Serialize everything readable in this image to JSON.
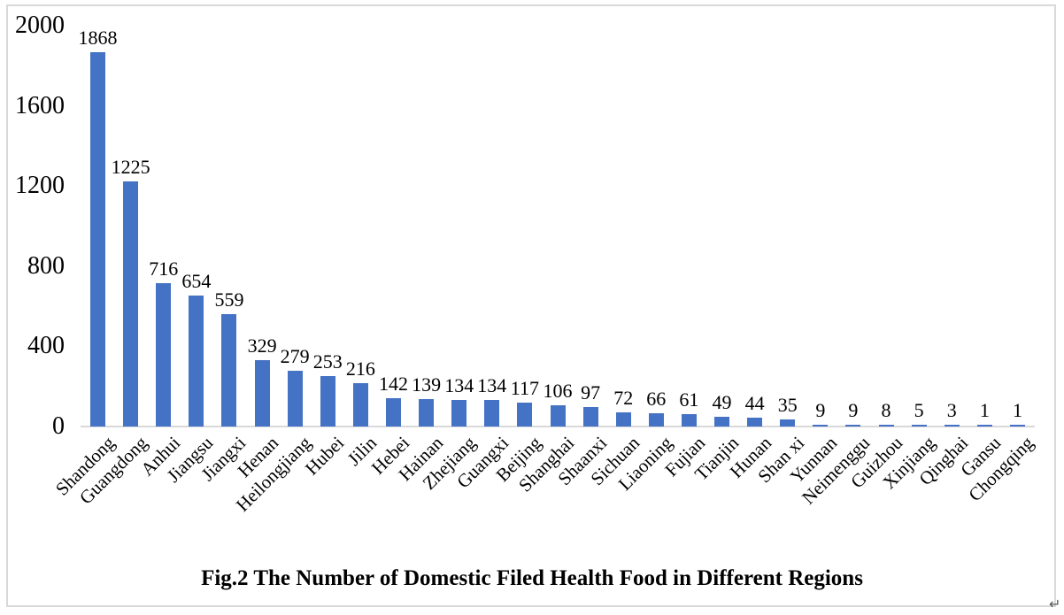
{
  "chart_data": {
    "type": "bar",
    "title": "Fig.2 The Number of Domestic Filed Health Food in Different Regions",
    "categories": [
      "Shandong",
      "Guangdong",
      "Anhui",
      "Jiangsu",
      "Jiangxi",
      "Henan",
      "Heilongjiang",
      "Hubei",
      "Jilin",
      "Hebei",
      "Hainan",
      "Zhejiang",
      "Guangxi",
      "Beijing",
      "Shanghai",
      "Shaanxi",
      "Sichuan",
      "Liaoning",
      "Fujian",
      "Tianjin",
      "Hunan",
      "Shan xi",
      "Yunnan",
      "Neimenggu",
      "Guizhou",
      "Xinjiang",
      "Qinghai",
      "Gansu",
      "Chongqing"
    ],
    "values": [
      1868,
      1225,
      716,
      654,
      559,
      329,
      279,
      253,
      216,
      142,
      139,
      134,
      134,
      117,
      106,
      97,
      72,
      66,
      61,
      49,
      44,
      35,
      9,
      9,
      8,
      5,
      3,
      1,
      1
    ],
    "xlabel": "",
    "ylabel": "",
    "ylim": [
      0,
      2000
    ],
    "yticks": [
      0,
      400,
      800,
      1200,
      1600,
      2000
    ],
    "grid": false,
    "legend_position": "none",
    "data_labels_shown": true,
    "bar_color": "#4472C4",
    "axis_line_color": "#D9D9D9",
    "frame_color": "#D9D9D9",
    "label_rotation_degrees": 45
  },
  "page": {
    "paragraph_mark": "↵"
  }
}
